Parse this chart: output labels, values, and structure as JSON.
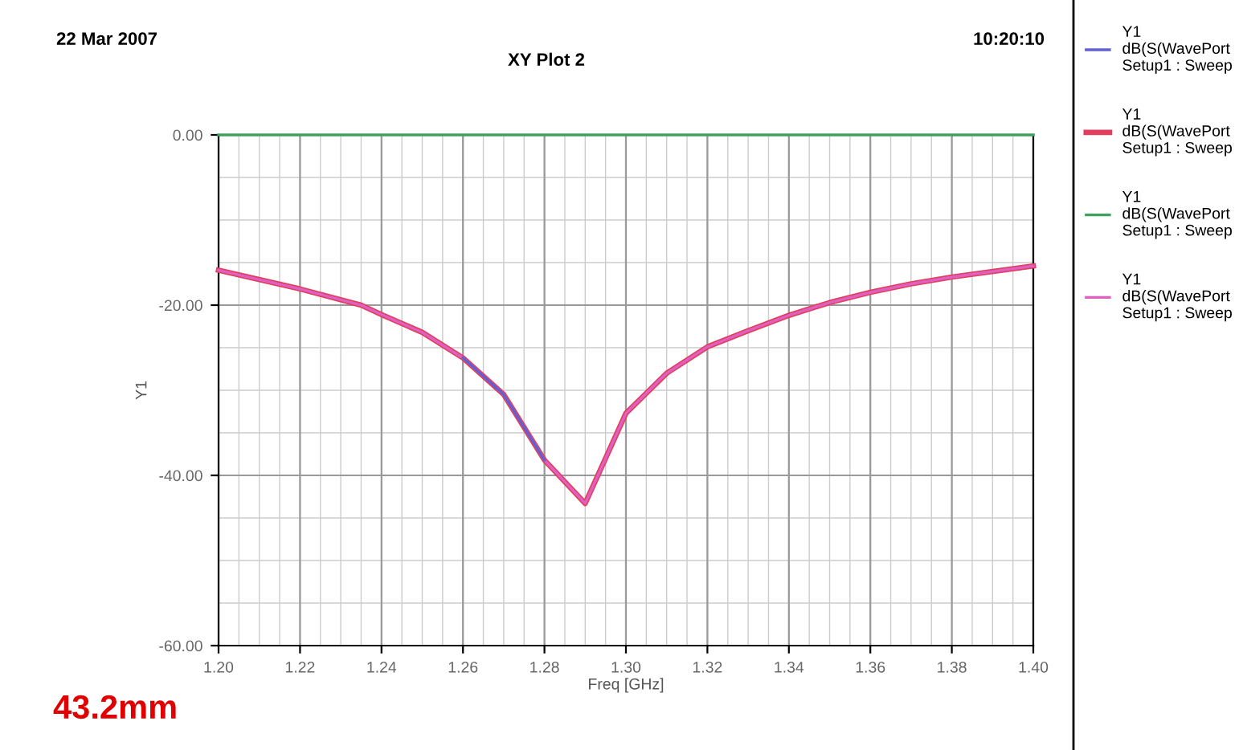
{
  "chart_data": {
    "type": "line",
    "title": "XY Plot 2",
    "xlabel": "Freq [GHz]",
    "ylabel": "Y1",
    "annotations": [
      "22 Mar 2007",
      "10:20:10",
      "43.2mm"
    ],
    "legend": "right",
    "grid": true,
    "marker": "none",
    "line_style": "solid",
    "xlim": [
      1.2,
      1.4
    ],
    "ylim": [
      -60,
      0
    ],
    "xticks": [
      {
        "value": 1.2,
        "label": "1.20"
      },
      {
        "value": 1.22,
        "label": "1.22"
      },
      {
        "value": 1.24,
        "label": "1.24"
      },
      {
        "value": 1.26,
        "label": "1.26"
      },
      {
        "value": 1.28,
        "label": "1.28"
      },
      {
        "value": 1.3,
        "label": "1.30"
      },
      {
        "value": 1.32,
        "label": "1.32"
      },
      {
        "value": 1.34,
        "label": "1.34"
      },
      {
        "value": 1.36,
        "label": "1.36"
      },
      {
        "value": 1.38,
        "label": "1.38"
      },
      {
        "value": 1.4,
        "label": "1.40"
      }
    ],
    "yticks": [
      {
        "value": -60,
        "label": "-60.00"
      },
      {
        "value": -40,
        "label": "-40.00"
      },
      {
        "value": -20,
        "label": "-20.00"
      },
      {
        "value": 0,
        "label": "0.00"
      }
    ],
    "series": [
      {
        "name": "Y1\ndB(S(WavePort\nSetup1 : Sweep",
        "color": "#6060d0",
        "x": [
          1.26,
          1.27,
          1.28
        ],
        "values": [
          -26.2,
          -30.5,
          -38.2
        ]
      },
      {
        "name": "Y1\ndB(S(WavePort\nSetup1 : Sweep",
        "color": "#e04060",
        "x": [
          1.2,
          1.22,
          1.235,
          1.24,
          1.25,
          1.26,
          1.27,
          1.28,
          1.29,
          1.3,
          1.31,
          1.32,
          1.33,
          1.34,
          1.35,
          1.36,
          1.37,
          1.38,
          1.4
        ],
        "values": [
          -15.9,
          -18.1,
          -20,
          -21.1,
          -23.2,
          -26.2,
          -30.5,
          -38.2,
          -43.3,
          -32.7,
          -28.0,
          -24.9,
          -23.0,
          -21.2,
          -19.7,
          -18.5,
          -17.5,
          -16.7,
          -15.4
        ]
      },
      {
        "name": "Y1\ndB(S(WavePort\nSetup1 : Sweep",
        "color": "#40a060",
        "x": [
          1.2,
          1.4
        ],
        "values": [
          0,
          0
        ]
      },
      {
        "name": "Y1\ndB(S(WavePort\nSetup1 : Sweep",
        "color": "#e060c0",
        "x": [
          1.2,
          1.22,
          1.235,
          1.24,
          1.25,
          1.26,
          1.27,
          1.28,
          1.29,
          1.3,
          1.31,
          1.32,
          1.33,
          1.34,
          1.35,
          1.36,
          1.37,
          1.38,
          1.4
        ],
        "values": [
          -15.9,
          -18.1,
          -20,
          -21.1,
          -23.2,
          -26.2,
          -30.5,
          -38.2,
          -43.3,
          -32.7,
          -28.0,
          -24.9,
          -23.0,
          -21.2,
          -19.7,
          -18.5,
          -17.5,
          -16.7,
          -15.4
        ]
      }
    ]
  }
}
